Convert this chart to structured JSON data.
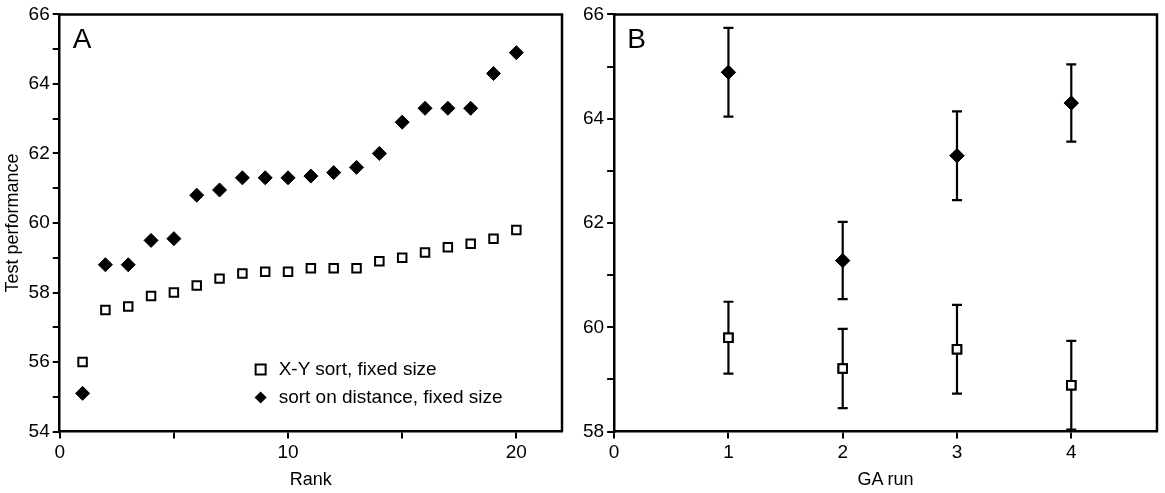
{
  "chart_data": [
    {
      "type": "scatter",
      "xlabel": "Rank",
      "ylabel": "Test performance",
      "annotations": [
        "A"
      ],
      "legend": "bottom right",
      "grid": false,
      "x": [
        1,
        2,
        3,
        4,
        5,
        6,
        7,
        8,
        9,
        10,
        11,
        12,
        13,
        14,
        15,
        16,
        17,
        18,
        19,
        20
      ],
      "xlim": [
        0,
        22
      ],
      "xticks": [
        0,
        {
          "value": 5,
          "label": null
        },
        10,
        {
          "value": 15,
          "label": null
        },
        20
      ],
      "ylim": [
        54,
        66
      ],
      "yticks": [
        54,
        {
          "value": 55,
          "label": null
        },
        56,
        {
          "value": 57,
          "label": null
        },
        58,
        {
          "value": 59,
          "label": null
        },
        60,
        {
          "value": 61,
          "label": null
        },
        62,
        {
          "value": 63,
          "label": null
        },
        64,
        {
          "value": 65,
          "label": null
        },
        66
      ],
      "series": [
        {
          "name": "X-Y sort, fixed size",
          "color": "#000000",
          "marker": "square",
          "values": [
            56.0,
            57.5,
            57.6,
            57.9,
            58.0,
            58.2,
            58.4,
            58.55,
            58.6,
            58.6,
            58.7,
            58.7,
            58.7,
            58.9,
            59.0,
            59.15,
            59.3,
            59.4,
            59.55,
            59.8
          ]
        },
        {
          "name": "sort on distance, fixed size",
          "color": "#000000",
          "marker": "diamond",
          "values": [
            55.1,
            58.8,
            58.8,
            59.5,
            59.55,
            60.8,
            60.95,
            61.3,
            61.3,
            61.3,
            61.35,
            61.45,
            61.6,
            62.0,
            62.9,
            63.3,
            63.3,
            63.3,
            64.3,
            64.9
          ]
        }
      ]
    },
    {
      "type": "scatter",
      "xlabel": "GA run",
      "annotations": [
        "B"
      ],
      "grid": false,
      "x": [
        1,
        2,
        3,
        4
      ],
      "xlim": [
        0,
        4.75
      ],
      "xticks": [
        0,
        1,
        2,
        3,
        4
      ],
      "ylim": [
        58,
        66
      ],
      "yticks": [
        58,
        {
          "value": 59,
          "label": null
        },
        60,
        {
          "value": 61,
          "label": null
        },
        62,
        {
          "value": 63,
          "label": null
        },
        64,
        {
          "value": 65,
          "label": null
        },
        66
      ],
      "series": [
        {
          "color": "#000000",
          "marker": "diamond",
          "values": [
            64.89,
            61.28,
            63.29,
            64.3
          ],
          "errors": [
            0.85,
            0.74,
            0.85,
            0.74
          ]
        },
        {
          "color": "#000000",
          "marker": "square",
          "values": [
            59.8,
            59.21,
            59.58,
            58.89
          ],
          "errors": [
            0.69,
            0.76,
            0.85,
            0.85
          ]
        }
      ]
    }
  ]
}
